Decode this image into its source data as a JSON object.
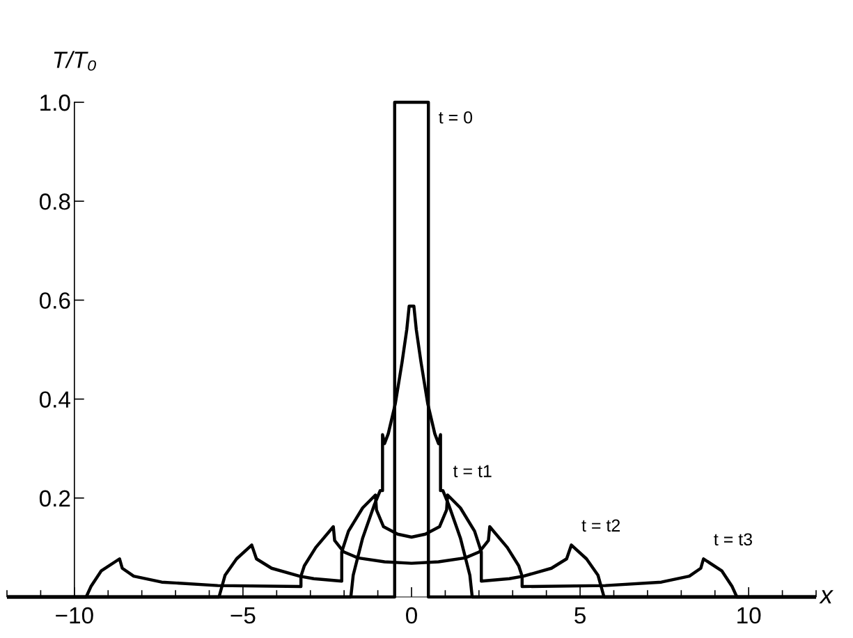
{
  "chart_data": {
    "type": "line",
    "xlabel": "x",
    "ylabel": "T/T₀",
    "xlim": [
      -12,
      12
    ],
    "ylim": [
      0,
      1.0
    ],
    "xticks": [
      {
        "value": -10,
        "label": "−10"
      },
      {
        "value": -5,
        "label": "−5"
      },
      0,
      5,
      10
    ],
    "yticks": [
      0.2,
      0.4,
      0.6,
      0.8,
      {
        "value": 1.0,
        "label": "1.0"
      }
    ],
    "grid": false,
    "legend": false,
    "marker": "none",
    "line_style": "solid",
    "series": [
      {
        "name": "t = 0",
        "color": "#000000",
        "x": [
          -12,
          -0.5,
          -0.5,
          0.5,
          0.5,
          12
        ],
        "values": [
          0,
          0,
          1.0,
          1.0,
          0,
          0
        ]
      },
      {
        "name": "t = t1",
        "color": "#000000",
        "x": [
          -12,
          -1.8,
          -1.73,
          -1.45,
          -1.11,
          -0.93,
          -0.86,
          -0.86,
          -0.8,
          -0.69,
          -0.48,
          -0.28,
          -0.14,
          -0.07,
          0.07,
          0.14,
          0.28,
          0.48,
          0.69,
          0.8,
          0.86,
          0.86,
          0.93,
          1.11,
          1.45,
          1.73,
          1.8,
          12
        ],
        "values": [
          0,
          0,
          0.044,
          0.119,
          0.185,
          0.215,
          0.215,
          0.328,
          0.31,
          0.33,
          0.391,
          0.475,
          0.541,
          0.588,
          0.588,
          0.541,
          0.475,
          0.391,
          0.33,
          0.31,
          0.328,
          0.215,
          0.215,
          0.185,
          0.119,
          0.044,
          0,
          0
        ]
      },
      {
        "name": "t = t2",
        "color": "#000000",
        "x": [
          -12,
          -5.71,
          -5.53,
          -5.19,
          -4.74,
          -4.6,
          -4.15,
          -3.32,
          -2.9,
          -2.07,
          -2.07,
          -1.87,
          -1.45,
          -1.07,
          -1.04,
          -0.83,
          -0.41,
          0,
          0.41,
          0.83,
          1.04,
          1.07,
          1.45,
          1.87,
          2.07,
          2.07,
          2.9,
          3.32,
          4.15,
          4.6,
          4.74,
          5.19,
          5.53,
          5.71,
          12
        ],
        "values": [
          0,
          0,
          0.044,
          0.077,
          0.105,
          0.077,
          0.058,
          0.042,
          0.037,
          0.032,
          0.091,
          0.133,
          0.18,
          0.206,
          0.176,
          0.142,
          0.127,
          0.121,
          0.127,
          0.142,
          0.176,
          0.206,
          0.18,
          0.133,
          0.091,
          0.032,
          0.037,
          0.042,
          0.058,
          0.077,
          0.105,
          0.077,
          0.044,
          0,
          0
        ]
      },
      {
        "name": "t = t3",
        "color": "#000000",
        "x": [
          -12,
          -9.65,
          -9.51,
          -9.2,
          -8.66,
          -8.58,
          -8.24,
          -7.41,
          -5.75,
          -3.28,
          -3.28,
          -3.18,
          -2.84,
          -2.32,
          -2.28,
          -2.01,
          -1.59,
          -0.8,
          0,
          0.8,
          1.59,
          2.01,
          2.28,
          2.32,
          2.84,
          3.18,
          3.28,
          3.28,
          5.75,
          7.41,
          8.24,
          8.58,
          8.66,
          9.2,
          9.51,
          9.65,
          12
        ],
        "values": [
          0,
          0,
          0.021,
          0.053,
          0.077,
          0.058,
          0.042,
          0.03,
          0.023,
          0.021,
          0.042,
          0.063,
          0.1,
          0.142,
          0.114,
          0.091,
          0.079,
          0.071,
          0.068,
          0.071,
          0.079,
          0.091,
          0.114,
          0.142,
          0.1,
          0.063,
          0.042,
          0.021,
          0.023,
          0.03,
          0.042,
          0.058,
          0.077,
          0.053,
          0.021,
          0,
          0
        ]
      }
    ]
  }
}
